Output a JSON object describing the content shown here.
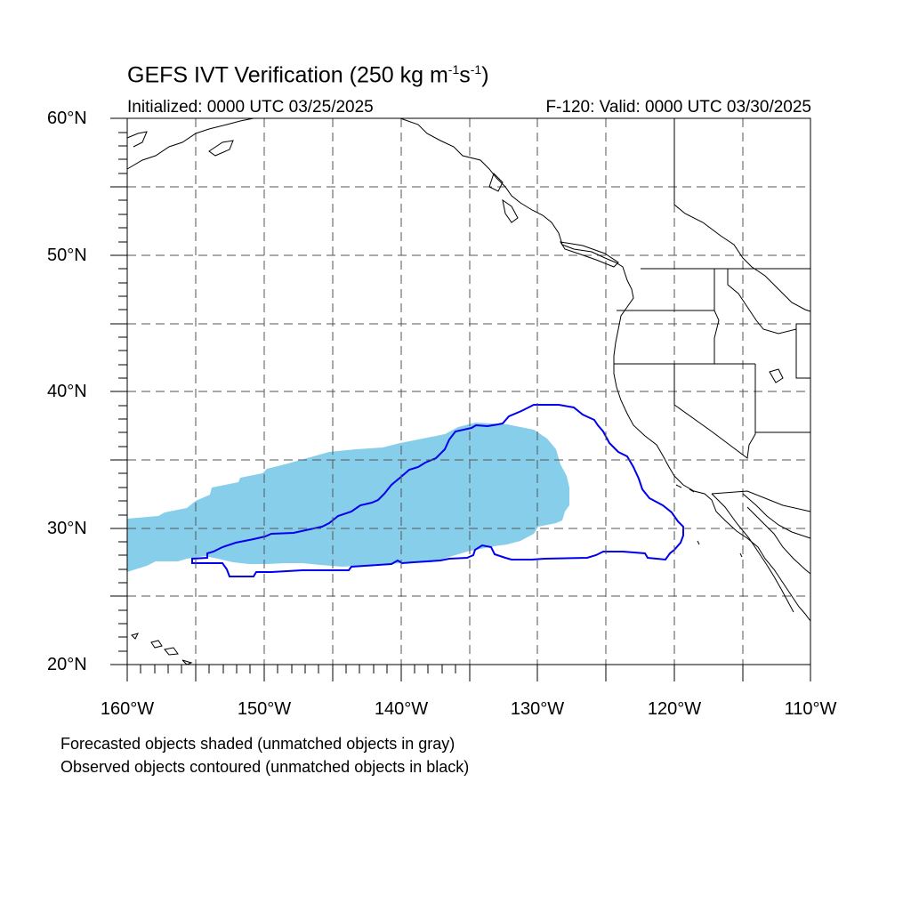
{
  "title": {
    "main": "GEFS IVT Verification (250 kg m",
    "sup1": "-1",
    "mid": "s",
    "sup2": "-1",
    "end": ")"
  },
  "subtitle": {
    "left": "Initialized: 0000 UTC 03/25/2025",
    "right": "F-120: Valid: 0000 UTC 03/30/2025"
  },
  "axes": {
    "lat_labels": [
      "60°N",
      "50°N",
      "40°N",
      "30°N",
      "20°N"
    ],
    "lon_labels": [
      "160°W",
      "150°W",
      "140°W",
      "130°W",
      "120°W",
      "110°W"
    ],
    "lat_range": [
      20,
      60
    ],
    "lon_range": [
      -160,
      -110
    ],
    "gridlines": "dashed every 5°"
  },
  "legend": {
    "line1": "Forecasted objects shaded (unmatched objects in gray)",
    "line2": "Observed objects contoured (unmatched objects in black)"
  },
  "colors": {
    "forecast_fill": "#87ceeb",
    "observed_contour": "#0000ee",
    "coastline": "#000000",
    "grid": "#555555"
  }
}
